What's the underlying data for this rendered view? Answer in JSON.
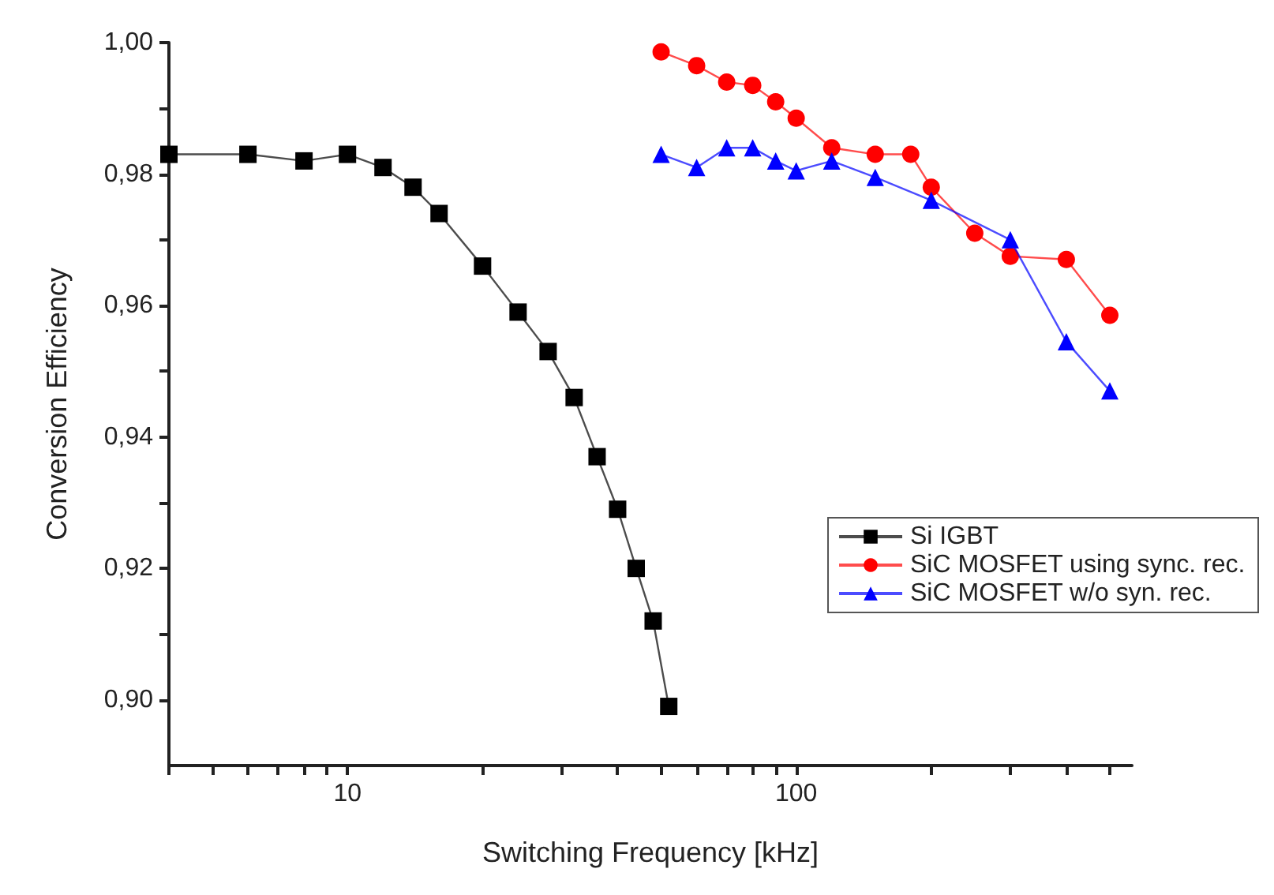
{
  "chart_data": {
    "type": "line",
    "xlabel": "Switching Frequency [kHz]",
    "ylabel": "Conversion Efficiency",
    "log": "x",
    "grid": false,
    "legend": "right",
    "line_style": "solid",
    "xlim": [
      4,
      560
    ],
    "ylim": [
      0.89,
      1.0
    ],
    "xticks": [
      {
        "value": 4,
        "label": null
      },
      {
        "value": 5,
        "label": null
      },
      {
        "value": 6,
        "label": null
      },
      {
        "value": 7,
        "label": null
      },
      {
        "value": 8,
        "label": null
      },
      {
        "value": 9,
        "label": null
      },
      10,
      {
        "value": 20,
        "label": null
      },
      {
        "value": 30,
        "label": null
      },
      {
        "value": 40,
        "label": null
      },
      {
        "value": 50,
        "label": null
      },
      {
        "value": 60,
        "label": null
      },
      {
        "value": 70,
        "label": null
      },
      {
        "value": 80,
        "label": null
      },
      {
        "value": 90,
        "label": null
      },
      100,
      {
        "value": 200,
        "label": null
      },
      {
        "value": 300,
        "label": null
      },
      {
        "value": 400,
        "label": null
      },
      {
        "value": 500,
        "label": null
      }
    ],
    "yticks": [
      {
        "value": 0.9,
        "label": "0,90"
      },
      {
        "value": 0.91,
        "label": null
      },
      {
        "value": 0.92,
        "label": "0,92"
      },
      {
        "value": 0.93,
        "label": null
      },
      {
        "value": 0.94,
        "label": "0,94"
      },
      {
        "value": 0.95,
        "label": null
      },
      {
        "value": 0.96,
        "label": "0,96"
      },
      {
        "value": 0.97,
        "label": null
      },
      {
        "value": 0.98,
        "label": "0,98"
      },
      {
        "value": 0.99,
        "label": null
      },
      {
        "value": 1.0,
        "label": "1,00"
      }
    ],
    "series": [
      {
        "name": "Si IGBT",
        "color": "#000000",
        "marker": "square",
        "x": [
          4,
          6,
          8,
          10,
          12,
          14,
          16,
          20,
          24,
          28,
          32,
          36,
          40,
          44,
          48,
          52
        ],
        "values": [
          0.983,
          0.983,
          0.982,
          0.983,
          0.981,
          0.978,
          0.974,
          0.966,
          0.959,
          0.953,
          0.946,
          0.937,
          0.929,
          0.92,
          0.912,
          0.899
        ]
      },
      {
        "name": "SiC MOSFET using sync. rec.",
        "color": "#ff0000",
        "marker": "circle",
        "x": [
          50,
          60,
          70,
          80,
          90,
          100,
          120,
          150,
          180,
          200,
          250,
          300,
          400,
          500
        ],
        "values": [
          0.9986,
          0.9965,
          0.994,
          0.9935,
          0.991,
          0.9885,
          0.984,
          0.983,
          0.983,
          0.978,
          0.971,
          0.9675,
          0.967,
          0.9585
        ]
      },
      {
        "name": "SiC MOSFET w/o syn. rec.",
        "color": "#0000ff",
        "marker": "triangle",
        "x": [
          50,
          60,
          70,
          80,
          90,
          100,
          120,
          150,
          200,
          300,
          400,
          500
        ],
        "values": [
          0.983,
          0.981,
          0.984,
          0.984,
          0.982,
          0.9805,
          0.982,
          0.9795,
          0.976,
          0.97,
          0.9545,
          0.947
        ]
      }
    ]
  }
}
